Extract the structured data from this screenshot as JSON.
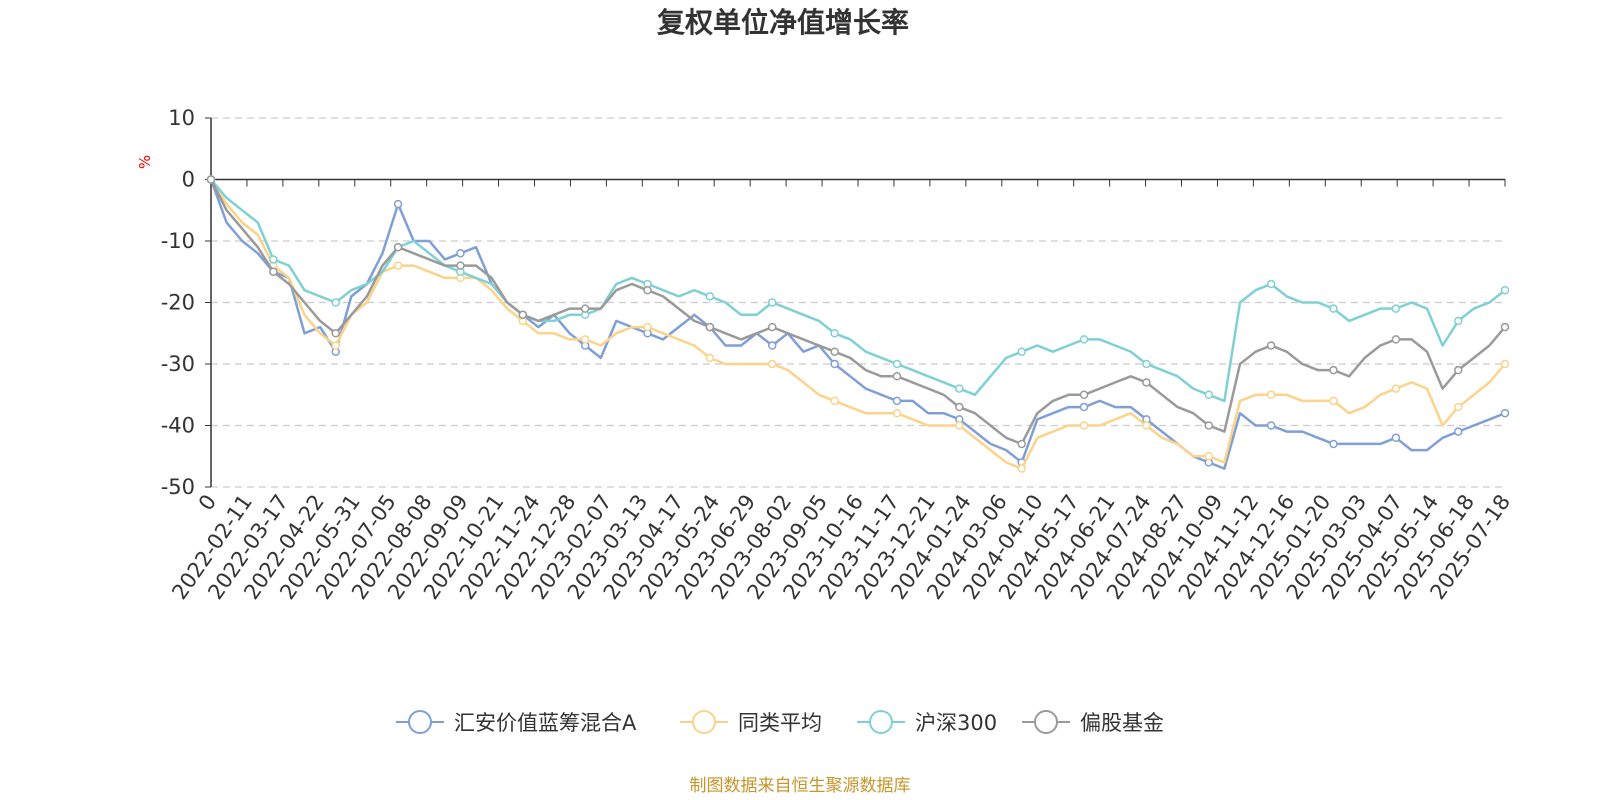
{
  "colors": {
    "fund": "#7f9fd6",
    "peer_avg": "#fbd38a",
    "hs300": "#7fd0d4",
    "equity_funds": "#9a9a9a",
    "axis": "#333333",
    "grid": "#cccccc",
    "unit": "#ff0000",
    "source": "#c9942a"
  },
  "source_note": "制图数据来自恒生聚源数据库",
  "chart_data": {
    "type": "line",
    "title": "复权单位净值增长率",
    "ylabel": "%",
    "ylim": [
      -50,
      10
    ],
    "yticks": [
      10,
      0,
      -10,
      -20,
      -30,
      -40,
      -50
    ],
    "grid": true,
    "legend_position": "bottom-center",
    "x_ticks": [
      "0",
      "2022-02-11",
      "2022-03-17",
      "2022-04-22",
      "2022-05-31",
      "2022-07-05",
      "2022-08-08",
      "2022-09-09",
      "2022-10-21",
      "2022-11-24",
      "2022-12-28",
      "2023-02-07",
      "2023-03-13",
      "2023-04-17",
      "2023-05-24",
      "2023-06-29",
      "2023-08-02",
      "2023-09-05",
      "2023-10-16",
      "2023-11-17",
      "2023-12-21",
      "2024-01-24",
      "2024-03-06",
      "2024-04-10",
      "2024-05-17",
      "2024-06-21",
      "2024-07-24",
      "2024-08-27",
      "2024-10-09",
      "2024-11-12",
      "2024-12-16",
      "2025-01-20",
      "2025-03-03",
      "2025-04-07",
      "2025-05-14",
      "2025-06-18",
      "2025-07-18"
    ],
    "series": [
      {
        "name": "汇安价值蓝筹混合A",
        "values": [
          0,
          -7,
          -10,
          -12,
          -15,
          -16,
          -25,
          -24,
          -28,
          -19,
          -17,
          -12,
          -4,
          -10,
          -10,
          -13,
          -12,
          -11,
          -17,
          -20,
          -22,
          -24,
          -22,
          -25,
          -27,
          -29,
          -23,
          -24,
          -25,
          -26,
          -24,
          -22,
          -24,
          -27,
          -27,
          -25,
          -27,
          -25,
          -28,
          -27,
          -30,
          -32,
          -34,
          -35,
          -36,
          -36,
          -38,
          -38,
          -39,
          -41,
          -43,
          -44,
          -46,
          -39,
          -38,
          -37,
          -37,
          -36,
          -37,
          -37,
          -39,
          -41,
          -43,
          -45,
          -46,
          -47,
          -38,
          -40,
          -40,
          -41,
          -41,
          -42,
          -43,
          -43,
          -43,
          -43,
          -42,
          -44,
          -44,
          -42,
          -41,
          -40,
          -39,
          -38
        ]
      },
      {
        "name": "同类平均",
        "values": [
          0,
          -4,
          -7,
          -9,
          -14,
          -16,
          -22,
          -25,
          -27,
          -22,
          -20,
          -15,
          -14,
          -14,
          -15,
          -16,
          -16,
          -16,
          -18,
          -21,
          -23,
          -25,
          -25,
          -26,
          -26,
          -27,
          -25,
          -24,
          -24,
          -25,
          -26,
          -27,
          -29,
          -30,
          -30,
          -30,
          -30,
          -31,
          -33,
          -35,
          -36,
          -37,
          -38,
          -38,
          -38,
          -39,
          -40,
          -40,
          -40,
          -42,
          -44,
          -46,
          -47,
          -42,
          -41,
          -40,
          -40,
          -40,
          -39,
          -38,
          -40,
          -42,
          -43,
          -45,
          -45,
          -46,
          -36,
          -35,
          -35,
          -35,
          -36,
          -36,
          -36,
          -38,
          -37,
          -35,
          -34,
          -33,
          -34,
          -40,
          -37,
          -35,
          -33,
          -30
        ]
      },
      {
        "name": "沪深300",
        "values": [
          0,
          -3,
          -5,
          -7,
          -13,
          -14,
          -18,
          -19,
          -20,
          -18,
          -17,
          -15,
          -11,
          -10,
          -12,
          -14,
          -15,
          -16,
          -17,
          -20,
          -22,
          -23,
          -23,
          -22,
          -22,
          -21,
          -17,
          -16,
          -17,
          -18,
          -19,
          -18,
          -19,
          -20,
          -22,
          -22,
          -20,
          -21,
          -22,
          -23,
          -25,
          -26,
          -28,
          -29,
          -30,
          -31,
          -32,
          -33,
          -34,
          -35,
          -32,
          -29,
          -28,
          -27,
          -28,
          -27,
          -26,
          -26,
          -27,
          -28,
          -30,
          -31,
          -32,
          -34,
          -35,
          -36,
          -20,
          -18,
          -17,
          -19,
          -20,
          -20,
          -21,
          -23,
          -22,
          -21,
          -21,
          -20,
          -21,
          -27,
          -23,
          -21,
          -20,
          -18
        ]
      },
      {
        "name": "偏股基金",
        "values": [
          0,
          -5,
          -8,
          -11,
          -15,
          -17,
          -20,
          -23,
          -25,
          -22,
          -19,
          -14,
          -11,
          -12,
          -13,
          -14,
          -14,
          -14,
          -16,
          -20,
          -22,
          -23,
          -22,
          -21,
          -21,
          -21,
          -18,
          -17,
          -18,
          -19,
          -21,
          -23,
          -24,
          -25,
          -26,
          -25,
          -24,
          -25,
          -26,
          -27,
          -28,
          -29,
          -31,
          -32,
          -32,
          -33,
          -34,
          -35,
          -37,
          -38,
          -40,
          -42,
          -43,
          -38,
          -36,
          -35,
          -35,
          -34,
          -33,
          -32,
          -33,
          -35,
          -37,
          -38,
          -40,
          -41,
          -30,
          -28,
          -27,
          -28,
          -30,
          -31,
          -31,
          -32,
          -29,
          -27,
          -26,
          -26,
          -28,
          -34,
          -31,
          -29,
          -27,
          -24
        ]
      }
    ]
  }
}
